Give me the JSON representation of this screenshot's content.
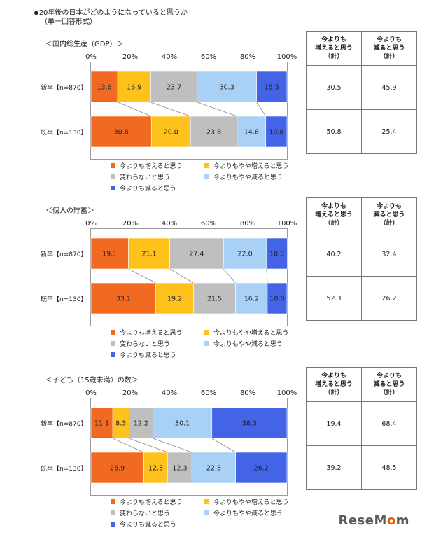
{
  "title": "◆20年後の日本がどのようになっていると思うか",
  "subtitle": "（単一回答形式）",
  "ticks": [
    "0%",
    "20%",
    "40%",
    "60%",
    "80%",
    "100%"
  ],
  "legend": [
    "今よりも増えると思う",
    "今よりもやや増えると思う",
    "変わらないと思う",
    "今よりもやや減ると思う",
    "今よりも減ると思う"
  ],
  "colors": [
    "#f26a21",
    "#ffc21c",
    "#bfbfbf",
    "#a8d1f5",
    "#4464e8"
  ],
  "table_headers": [
    "今よりも\n増えると思う\n（計）",
    "今よりも\n減ると思う\n（計）"
  ],
  "logo": {
    "part1": "ReseM",
    "part2": "o",
    "part3": "m"
  },
  "chart_data": [
    {
      "type": "bar",
      "stacked": true,
      "orientation": "horizontal",
      "title": "＜国内総生産（GDP）＞",
      "categories": [
        "新卒【n=870】",
        "既卒【n=130】"
      ],
      "xlim": [
        0,
        100
      ],
      "series": [
        {
          "name": "今よりも増えると思う",
          "values": [
            13.6,
            30.8
          ]
        },
        {
          "name": "今よりもやや増えると思う",
          "values": [
            16.9,
            20.0
          ]
        },
        {
          "name": "変わらないと思う",
          "values": [
            23.7,
            23.8
          ]
        },
        {
          "name": "今よりもやや減ると思う",
          "values": [
            30.3,
            14.6
          ]
        },
        {
          "name": "今よりも減ると思う",
          "values": [
            15.5,
            10.8
          ]
        }
      ],
      "labels": [
        [
          "13.6",
          "16.9",
          "23.7",
          "30.3",
          "15.5"
        ],
        [
          "30.8",
          "20.0",
          "23.8",
          "14.6",
          "10.8"
        ]
      ],
      "summary": [
        [
          "30.5",
          "45.9"
        ],
        [
          "50.8",
          "25.4"
        ]
      ]
    },
    {
      "type": "bar",
      "stacked": true,
      "orientation": "horizontal",
      "title": "＜個人の貯蓄＞",
      "categories": [
        "新卒【n=870】",
        "既卒【n=130】"
      ],
      "xlim": [
        0,
        100
      ],
      "series": [
        {
          "name": "今よりも増えると思う",
          "values": [
            19.1,
            33.1
          ]
        },
        {
          "name": "今よりもやや増えると思う",
          "values": [
            21.1,
            19.2
          ]
        },
        {
          "name": "変わらないと思う",
          "values": [
            27.4,
            21.5
          ]
        },
        {
          "name": "今よりもやや減ると思う",
          "values": [
            22.0,
            16.2
          ]
        },
        {
          "name": "今よりも減ると思う",
          "values": [
            10.5,
            10.0
          ]
        }
      ],
      "labels": [
        [
          "19.1",
          "21.1",
          "27.4",
          "22.0",
          "10.5"
        ],
        [
          "33.1",
          "19.2",
          "21.5",
          "16.2",
          "10.0"
        ]
      ],
      "summary": [
        [
          "40.2",
          "32.4"
        ],
        [
          "52.3",
          "26.2"
        ]
      ]
    },
    {
      "type": "bar",
      "stacked": true,
      "orientation": "horizontal",
      "title": "＜子ども（15歳未満）の数＞",
      "categories": [
        "新卒【n=870】",
        "既卒【n=130】"
      ],
      "xlim": [
        0,
        100
      ],
      "series": [
        {
          "name": "今よりも増えると思う",
          "values": [
            11.1,
            26.9
          ]
        },
        {
          "name": "今よりもやや増えると思う",
          "values": [
            8.3,
            12.3
          ]
        },
        {
          "name": "変わらないと思う",
          "values": [
            12.2,
            12.3
          ]
        },
        {
          "name": "今よりもやや減ると思う",
          "values": [
            30.1,
            22.3
          ]
        },
        {
          "name": "今よりも減ると思う",
          "values": [
            38.3,
            26.2
          ]
        }
      ],
      "labels": [
        [
          "11.1",
          "8.3",
          "12.2",
          "30.1",
          "38.3"
        ],
        [
          "26.9",
          "12.3",
          "12.3",
          "22.3",
          "26.2"
        ]
      ],
      "summary": [
        [
          "19.4",
          "68.4"
        ],
        [
          "39.2",
          "48.5"
        ]
      ]
    }
  ]
}
